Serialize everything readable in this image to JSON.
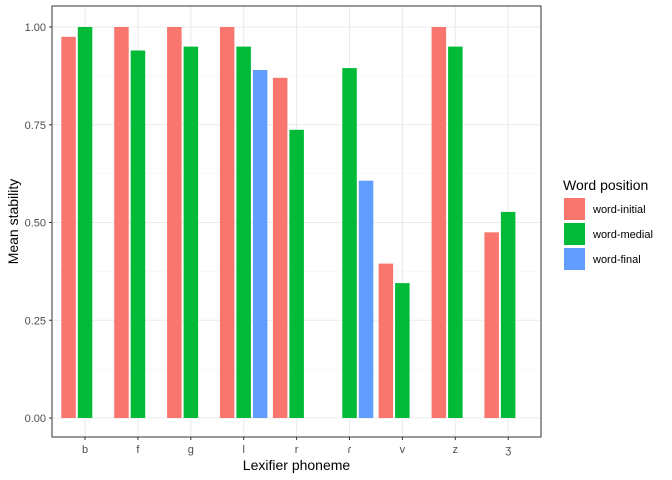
{
  "chart_data": {
    "type": "bar",
    "xlabel": "Lexifier phoneme",
    "ylabel": "Mean stability",
    "categories": [
      "b",
      "f",
      "g",
      "l",
      "r",
      "ɾ",
      "v",
      "z",
      "ʒ"
    ],
    "series": [
      {
        "name": "word-initial",
        "color": "#F8766D",
        "values": [
          0.975,
          1.0,
          1.0,
          1.0,
          0.87,
          null,
          0.395,
          1.0,
          0.475
        ]
      },
      {
        "name": "word-medial",
        "color": "#00BA38",
        "values": [
          1.0,
          0.94,
          0.95,
          0.95,
          0.737,
          0.895,
          0.345,
          0.95,
          0.527
        ]
      },
      {
        "name": "word-final",
        "color": "#619CFF",
        "values": [
          null,
          null,
          null,
          0.89,
          null,
          0.607,
          null,
          null,
          null
        ]
      }
    ],
    "ylim": [
      0.0,
      1.0
    ],
    "yticks": [
      "0.00",
      "0.25",
      "0.50",
      "0.75",
      "1.00"
    ],
    "legend": {
      "title": "Word position",
      "position": "right"
    },
    "grid": true
  }
}
